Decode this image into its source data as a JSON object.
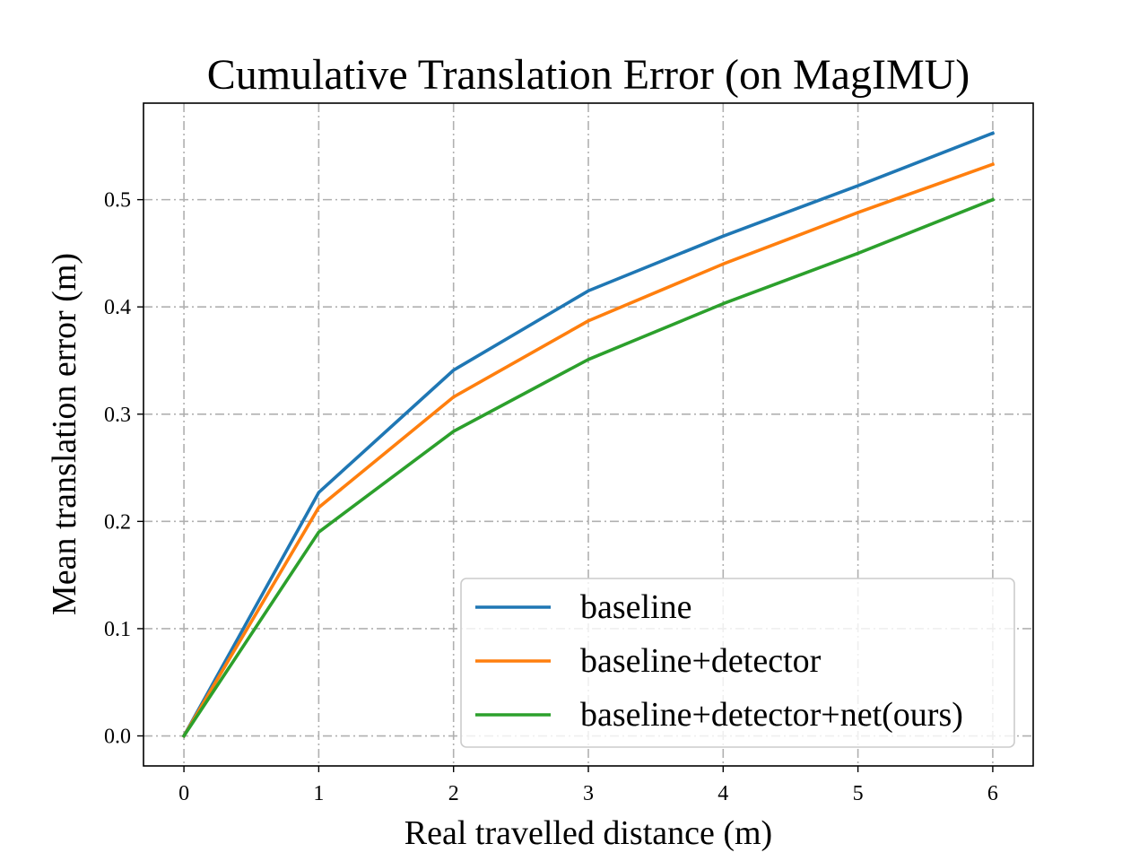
{
  "chart_data": {
    "type": "line",
    "title": "Cumulative Translation Error (on MagIMU)",
    "xlabel": "Real travelled distance (m)",
    "ylabel": "Mean translation error (m)",
    "x": [
      0,
      1,
      2,
      3,
      4,
      5,
      6
    ],
    "xlim": [
      -0.3,
      6.3
    ],
    "ylim": [
      -0.028,
      0.59
    ],
    "xticks": [
      "0",
      "1",
      "2",
      "3",
      "4",
      "5",
      "6"
    ],
    "yticks": [
      "0.0",
      "0.1",
      "0.2",
      "0.3",
      "0.4",
      "0.5"
    ],
    "grid": true,
    "legend_position": "lower-right",
    "series": [
      {
        "name": "baseline",
        "color": "#1f77b4",
        "values": [
          0.0,
          0.227,
          0.341,
          0.415,
          0.466,
          0.513,
          0.562
        ]
      },
      {
        "name": "baseline+detector",
        "color": "#ff7f0e",
        "values": [
          0.0,
          0.213,
          0.316,
          0.387,
          0.44,
          0.488,
          0.533
        ]
      },
      {
        "name": "baseline+detector+net(ours)",
        "color": "#2ca02c",
        "values": [
          0.0,
          0.19,
          0.284,
          0.351,
          0.403,
          0.45,
          0.5
        ]
      }
    ]
  }
}
